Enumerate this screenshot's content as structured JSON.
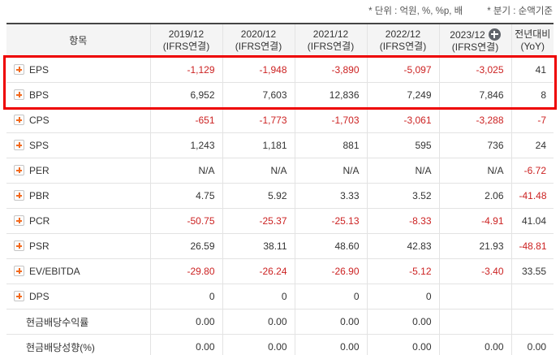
{
  "annotations": {
    "unit": "* 단위 : 억원, %, %p, 배",
    "basis": "* 분기 : 순액기준"
  },
  "colors": {
    "negative_value": "#cc2222",
    "text": "#333333",
    "highlight_border": "#ee0000",
    "expand_icon_orange": "#f2691d",
    "header_background": "#f4f4f4"
  },
  "table": {
    "header": {
      "item_label": "항목",
      "columns": [
        {
          "line1": "2019/12",
          "line2": "(IFRS연결)",
          "icon": null
        },
        {
          "line1": "2020/12",
          "line2": "(IFRS연결)",
          "icon": null
        },
        {
          "line1": "2021/12",
          "line2": "(IFRS연결)",
          "icon": null
        },
        {
          "line1": "2022/12",
          "line2": "(IFRS연결)",
          "icon": null
        },
        {
          "line1": "2023/12",
          "line2": "(IFRS연결)",
          "icon": "circle-plus-icon"
        },
        {
          "line1": "전년대비",
          "line2": "(YoY)",
          "icon": null
        }
      ]
    },
    "rows": [
      {
        "label": "EPS",
        "icon": "plus-expand-icon",
        "highlighted": true,
        "values": [
          "-1,129",
          "-1,948",
          "-3,890",
          "-5,097",
          "-3,025",
          "41"
        ]
      },
      {
        "label": "BPS",
        "icon": "plus-expand-icon",
        "highlighted": true,
        "values": [
          "6,952",
          "7,603",
          "12,836",
          "7,249",
          "7,846",
          "8"
        ]
      },
      {
        "label": "CPS",
        "icon": "plus-expand-icon",
        "highlighted": false,
        "values": [
          "-651",
          "-1,773",
          "-1,703",
          "-3,061",
          "-3,288",
          "-7"
        ]
      },
      {
        "label": "SPS",
        "icon": "plus-expand-icon",
        "highlighted": false,
        "values": [
          "1,243",
          "1,181",
          "881",
          "595",
          "736",
          "24"
        ]
      },
      {
        "label": "PER",
        "icon": "plus-expand-icon",
        "highlighted": false,
        "values": [
          "N/A",
          "N/A",
          "N/A",
          "N/A",
          "N/A",
          "-6.72"
        ]
      },
      {
        "label": "PBR",
        "icon": "plus-expand-icon",
        "highlighted": false,
        "values": [
          "4.75",
          "5.92",
          "3.33",
          "3.52",
          "2.06",
          "-41.48"
        ]
      },
      {
        "label": "PCR",
        "icon": "plus-expand-icon",
        "highlighted": false,
        "values": [
          "-50.75",
          "-25.37",
          "-25.13",
          "-8.33",
          "-4.91",
          "41.04"
        ]
      },
      {
        "label": "PSR",
        "icon": "plus-expand-icon",
        "highlighted": false,
        "values": [
          "26.59",
          "38.11",
          "48.60",
          "42.83",
          "21.93",
          "-48.81"
        ]
      },
      {
        "label": "EV/EBITDA",
        "icon": "plus-expand-icon",
        "highlighted": false,
        "values": [
          "-29.80",
          "-26.24",
          "-26.90",
          "-5.12",
          "-3.40",
          "33.55"
        ]
      },
      {
        "label": "DPS",
        "icon": "plus-expand-icon",
        "highlighted": false,
        "values": [
          "0",
          "0",
          "0",
          "0",
          "",
          ""
        ]
      },
      {
        "label": "현금배당수익률",
        "icon": null,
        "highlighted": false,
        "values": [
          "0.00",
          "0.00",
          "0.00",
          "0.00",
          "",
          ""
        ]
      },
      {
        "label": "현금배당성향(%)",
        "icon": null,
        "highlighted": false,
        "values": [
          "0.00",
          "0.00",
          "0.00",
          "0.00",
          "0.00",
          "0.00"
        ]
      }
    ]
  }
}
